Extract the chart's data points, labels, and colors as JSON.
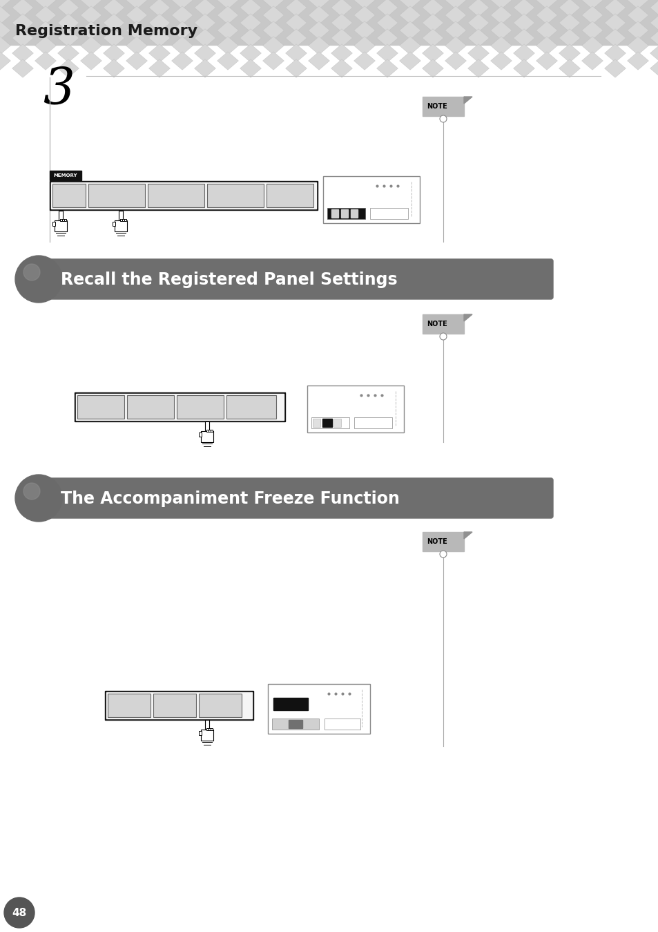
{
  "page_bg": "#ffffff",
  "header_text": "Registration Memory",
  "section1_title": "Recall the Registered Panel Settings",
  "section2_title": "The Accompaniment Freeze Function",
  "step_number": "3",
  "page_number": "48",
  "note_color": "#aaaaaa",
  "note_fold_color": "#888888",
  "section_bg": "#707070",
  "section_text_color": "#ffffff",
  "btn_color": "#d0d0d0",
  "btn_border": "#555555",
  "strip_border": "#000000",
  "panel_border": "#888888",
  "line_color": "#aaaaaa",
  "vertical_line_color": "#aaaaaa"
}
